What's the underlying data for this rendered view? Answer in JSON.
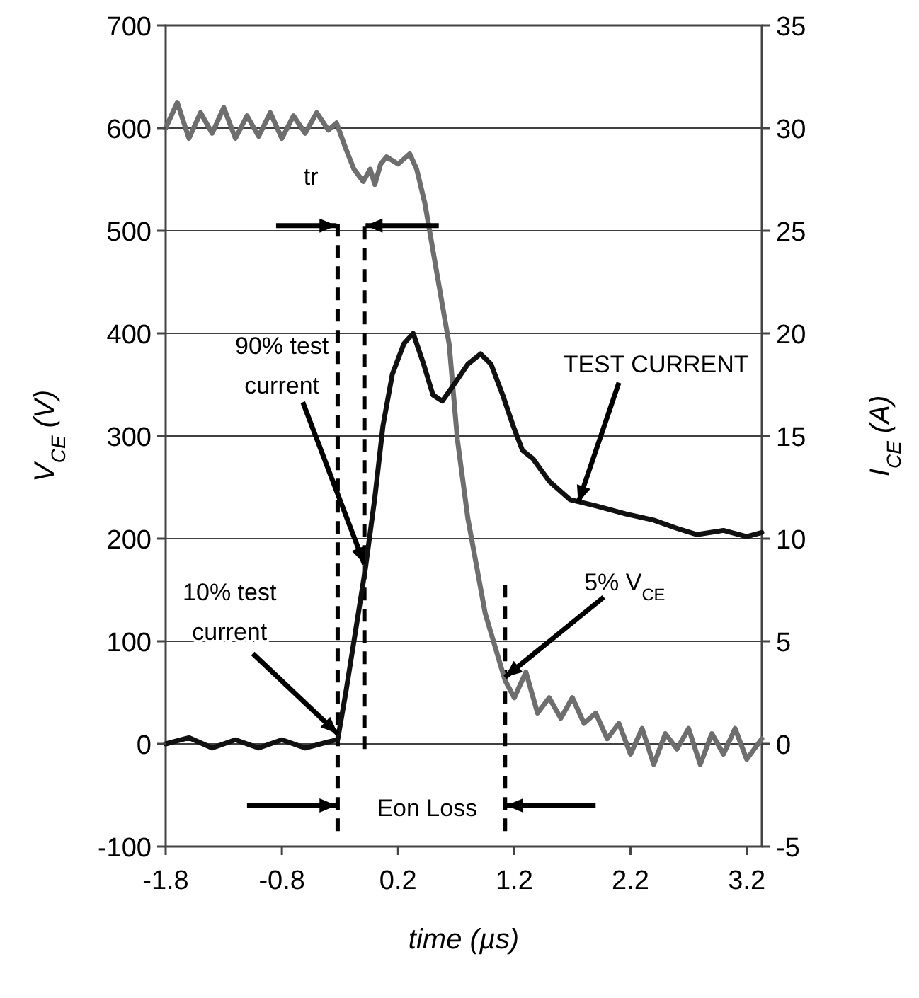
{
  "chart_data": {
    "type": "line",
    "xlabel": "time (µs)",
    "ylabel": "V$_{CE}$ (V)",
    "y2label": "I$_{CE}$ (A)",
    "xlim": [
      -1.8,
      3.33
    ],
    "xticks": [
      -1.8,
      -0.8,
      0.2,
      1.2,
      2.2,
      3.2
    ],
    "ylim": [
      -100,
      700
    ],
    "yticks": [
      -100,
      0,
      100,
      200,
      300,
      400,
      500,
      600,
      700
    ],
    "y2lim": [
      -5,
      35
    ],
    "y2ticks": [
      -5,
      0,
      5,
      10,
      15,
      20,
      25,
      30,
      35
    ],
    "grid": "y",
    "marker": "none",
    "line_style": "solid",
    "series": [
      {
        "color": "#6e6e6e",
        "x": [
          -1.8,
          -1.7,
          -1.6,
          -1.5,
          -1.4,
          -1.3,
          -1.2,
          -1.1,
          -1.0,
          -0.9,
          -0.8,
          -0.7,
          -0.6,
          -0.5,
          -0.4,
          -0.33,
          -0.25,
          -0.18,
          -0.1,
          -0.04,
          0.0,
          0.05,
          0.1,
          0.2,
          0.3,
          0.36,
          0.43,
          0.55,
          0.64,
          0.71,
          0.8,
          0.95,
          1.12,
          1.2,
          1.3,
          1.4,
          1.5,
          1.6,
          1.7,
          1.8,
          1.9,
          2.0,
          2.1,
          2.2,
          2.3,
          2.4,
          2.5,
          2.6,
          2.7,
          2.8,
          2.9,
          3.0,
          3.1,
          3.2,
          3.33
        ],
        "values": [
          600,
          625,
          590,
          615,
          595,
          620,
          590,
          612,
          592,
          615,
          590,
          612,
          595,
          615,
          598,
          605,
          580,
          560,
          548,
          560,
          545,
          565,
          572,
          565,
          575,
          560,
          527,
          448,
          389,
          297,
          220,
          127,
          62,
          45,
          70,
          30,
          45,
          25,
          45,
          20,
          30,
          5,
          20,
          -10,
          15,
          -20,
          10,
          -5,
          15,
          -20,
          10,
          -10,
          15,
          -15,
          5
        ]
      },
      {
        "color": "#111111",
        "axis": "y2",
        "x": [
          -1.8,
          -1.6,
          -1.4,
          -1.2,
          -1.0,
          -0.8,
          -0.6,
          -0.4,
          -0.32,
          -0.25,
          -0.18,
          -0.08,
          0.0,
          0.07,
          0.15,
          0.25,
          0.33,
          0.42,
          0.5,
          0.58,
          0.68,
          0.8,
          0.91,
          1.0,
          1.1,
          1.19,
          1.27,
          1.36,
          1.5,
          1.68,
          1.9,
          2.16,
          2.4,
          2.6,
          2.77,
          3.0,
          3.2,
          3.33
        ],
        "values": [
          0,
          0.3,
          -0.2,
          0.2,
          -0.2,
          0.2,
          -0.2,
          0.1,
          0.2,
          2.5,
          5,
          8.6,
          12,
          15.5,
          18,
          19.5,
          20,
          18.5,
          17,
          16.7,
          17.5,
          18.5,
          19,
          18.5,
          17,
          15.5,
          14.3,
          13.9,
          12.8,
          11.9,
          11.6,
          11.2,
          10.9,
          10.5,
          10.2,
          10.4,
          10.1,
          10.3
        ]
      }
    ],
    "ref_lines": [
      {
        "axis": "x",
        "value": -0.32,
        "line_style": "dashed"
      },
      {
        "axis": "x",
        "value": -0.09,
        "line_style": "dashed"
      },
      {
        "axis": "x",
        "value": 1.12,
        "line_style": "dashed"
      }
    ],
    "annotations": [
      "tr",
      {
        "text": "90% test current",
        "x": -0.09,
        "y": 175
      },
      {
        "text": "10% test current",
        "x": -0.32,
        "y": 10
      },
      {
        "text": "TEST CURRENT",
        "x": 1.75,
        "y": 235
      },
      {
        "text": "5% V$_{CE}$",
        "x": 1.12,
        "y": 65
      },
      "Eon Loss"
    ]
  }
}
